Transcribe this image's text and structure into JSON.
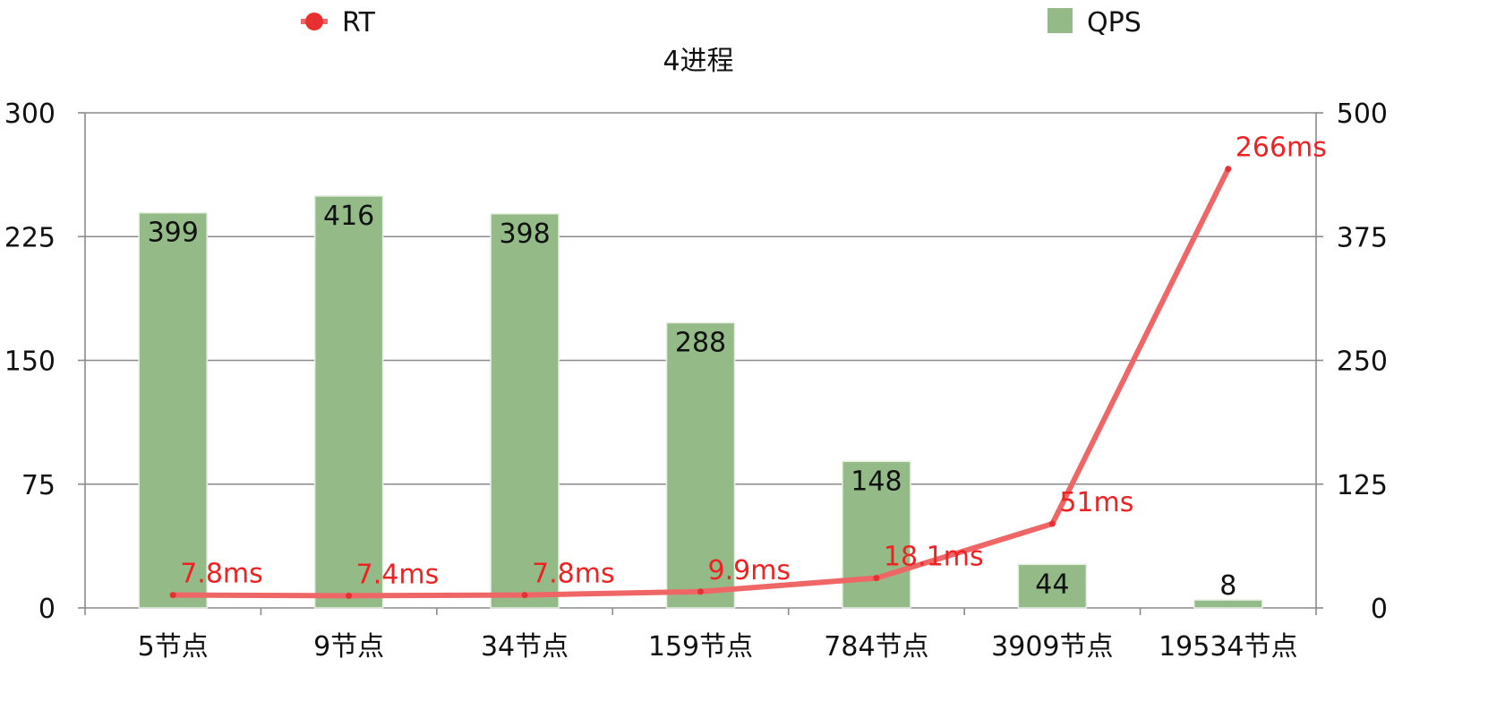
{
  "chart_data": {
    "type": "bar",
    "title": "4进程",
    "categories": [
      "5节点",
      "9节点",
      "34节点",
      "159节点",
      "784节点",
      "3909节点",
      "19534节点"
    ],
    "series": [
      {
        "name": "QPS",
        "type": "bar",
        "axis": "right",
        "color": "#94bb87",
        "values": [
          399,
          416,
          398,
          288,
          148,
          44,
          8
        ],
        "labels": [
          "399",
          "416",
          "398",
          "288",
          "148",
          "44",
          "8"
        ]
      },
      {
        "name": "RT",
        "type": "line",
        "axis": "left",
        "color": "#ef6666",
        "marker_color": "#e83030",
        "label_color": "#ee2222",
        "values": [
          7.8,
          7.4,
          7.8,
          9.9,
          18.1,
          51,
          266
        ],
        "labels": [
          "7.8ms",
          "7.4ms",
          "7.8ms",
          "9.9ms",
          "18.1ms",
          "51ms",
          "266ms"
        ]
      }
    ],
    "y_left": {
      "ticks": [
        "0",
        "75",
        "150",
        "225",
        "300"
      ],
      "ylim": [
        0,
        300
      ]
    },
    "y_right": {
      "ticks": [
        "0",
        "125",
        "250",
        "375",
        "500"
      ],
      "ylim": [
        0,
        500
      ]
    },
    "grid": true,
    "legend_position": "top"
  }
}
